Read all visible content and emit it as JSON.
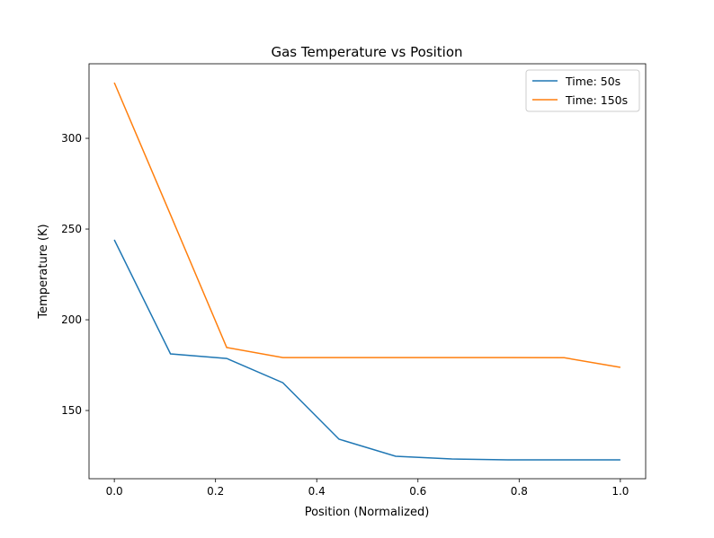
{
  "chart_data": {
    "type": "line",
    "title": "Gas Temperature vs Position",
    "xlabel": "Position (Normalized)",
    "ylabel": "Temperature (K)",
    "xlim": [
      -0.05,
      1.05
    ],
    "ylim": [
      112.4,
      341.1
    ],
    "xticks": [
      0.0,
      0.2,
      0.4,
      0.6,
      0.8,
      1.0
    ],
    "xtick_labels": [
      "0.0",
      "0.2",
      "0.4",
      "0.6",
      "0.8",
      "1.0"
    ],
    "yticks": [
      150,
      200,
      250,
      300
    ],
    "ytick_labels": [
      "150",
      "200",
      "250",
      "300"
    ],
    "grid": false,
    "legend_position": "top-right",
    "x": [
      0.0,
      0.111,
      0.222,
      0.333,
      0.444,
      0.556,
      0.667,
      0.778,
      0.889,
      1.0
    ],
    "series": [
      {
        "name": "Time: 50s",
        "color": "#1f77b4",
        "values": [
          244.1,
          181.2,
          178.7,
          165.3,
          134.2,
          124.8,
          123.3,
          122.8,
          122.8,
          122.8
        ]
      },
      {
        "name": "Time: 150s",
        "color": "#ff7f0e",
        "values": [
          330.7,
          257.9,
          184.7,
          179.2,
          179.2,
          179.2,
          179.2,
          179.2,
          179.1,
          173.8
        ]
      }
    ]
  }
}
